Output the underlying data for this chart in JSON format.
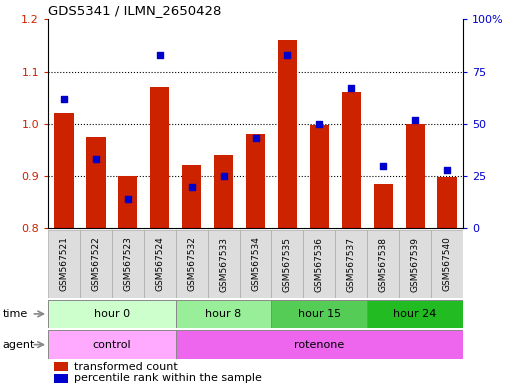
{
  "title": "GDS5341 / ILMN_2650428",
  "samples": [
    "GSM567521",
    "GSM567522",
    "GSM567523",
    "GSM567524",
    "GSM567532",
    "GSM567533",
    "GSM567534",
    "GSM567535",
    "GSM567536",
    "GSM567537",
    "GSM567538",
    "GSM567539",
    "GSM567540"
  ],
  "red_values": [
    1.02,
    0.975,
    0.9,
    1.07,
    0.922,
    0.94,
    0.98,
    1.16,
    0.997,
    1.06,
    0.885,
    1.0,
    0.898
  ],
  "blue_values_pct": [
    62,
    33,
    14,
    83,
    20,
    25,
    43,
    83,
    50,
    67,
    30,
    52,
    28
  ],
  "ylim_left": [
    0.8,
    1.2
  ],
  "ylim_right": [
    0,
    100
  ],
  "yticks_left": [
    0.8,
    0.9,
    1.0,
    1.1,
    1.2
  ],
  "yticks_right": [
    0,
    25,
    50,
    75,
    100
  ],
  "ytick_labels_right": [
    "0",
    "25",
    "50",
    "75",
    "100%"
  ],
  "bar_color": "#cc2200",
  "dot_color": "#0000cc",
  "bar_bottom": 0.8,
  "time_groups": [
    {
      "label": "hour 0",
      "start": 0,
      "end": 4,
      "color": "#ccffcc"
    },
    {
      "label": "hour 8",
      "start": 4,
      "end": 7,
      "color": "#99ee99"
    },
    {
      "label": "hour 15",
      "start": 7,
      "end": 10,
      "color": "#55cc55"
    },
    {
      "label": "hour 24",
      "start": 10,
      "end": 13,
      "color": "#22bb22"
    }
  ],
  "agent_groups": [
    {
      "label": "control",
      "start": 0,
      "end": 4,
      "color": "#ffaaff"
    },
    {
      "label": "rotenone",
      "start": 4,
      "end": 13,
      "color": "#ee66ee"
    }
  ],
  "legend_red": "transformed count",
  "legend_blue": "percentile rank within the sample",
  "bg_color": "#ffffff",
  "tick_color_left": "#cc2200",
  "tick_color_right": "#0000cc",
  "xtick_bg": "#dddddd"
}
